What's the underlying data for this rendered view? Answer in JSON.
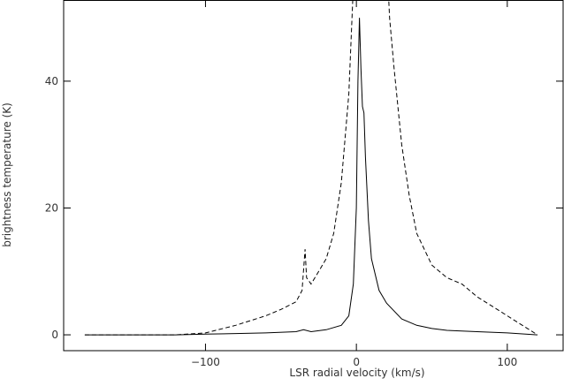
{
  "chart_data": {
    "type": "line",
    "x_label": "LSR radial velocity (km/s)",
    "y_label": "brightness temperature (K)",
    "series": [
      {
        "style": "solid",
        "color": "#000000",
        "x": [
          -180,
          -150,
          -120,
          -100,
          -80,
          -60,
          -40,
          -35,
          -30,
          -20,
          -10,
          -5,
          -2,
          0,
          1,
          2,
          3,
          4,
          5,
          6,
          8,
          10,
          15,
          20,
          30,
          40,
          50,
          60,
          80,
          100,
          120
        ],
        "values": [
          0,
          0,
          0,
          0.1,
          0.2,
          0.3,
          0.5,
          0.8,
          0.5,
          0.8,
          1.5,
          3,
          8,
          20,
          40,
          50,
          42,
          36,
          35,
          28,
          18,
          12,
          7,
          5,
          2.5,
          1.5,
          1,
          0.7,
          0.5,
          0.3,
          0
        ]
      },
      {
        "style": "dashed",
        "color": "#000000",
        "x": [
          -180,
          -150,
          -120,
          -100,
          -80,
          -60,
          -50,
          -40,
          -36,
          -34,
          -33,
          -30,
          -25,
          -20,
          -15,
          -10,
          -5,
          -2,
          0,
          10,
          20,
          22,
          25,
          30,
          35,
          40,
          50,
          60,
          70,
          80,
          90,
          100,
          110,
          120
        ],
        "values": [
          0,
          0,
          0,
          0.3,
          1.5,
          3,
          4,
          5.2,
          7,
          13.5,
          9,
          8,
          10,
          12,
          16,
          24,
          38,
          55,
          70,
          80,
          60,
          50,
          42,
          30,
          22,
          16,
          11,
          9,
          8,
          6,
          4.5,
          3,
          1.5,
          0
        ]
      }
    ],
    "xlim": [
      -194,
      137
    ],
    "ylim": [
      -2.5,
      52.8
    ],
    "xticks": [
      {
        "value": -100,
        "label": "−100"
      },
      0,
      100
    ],
    "yticks": [
      0,
      20,
      40
    ]
  }
}
